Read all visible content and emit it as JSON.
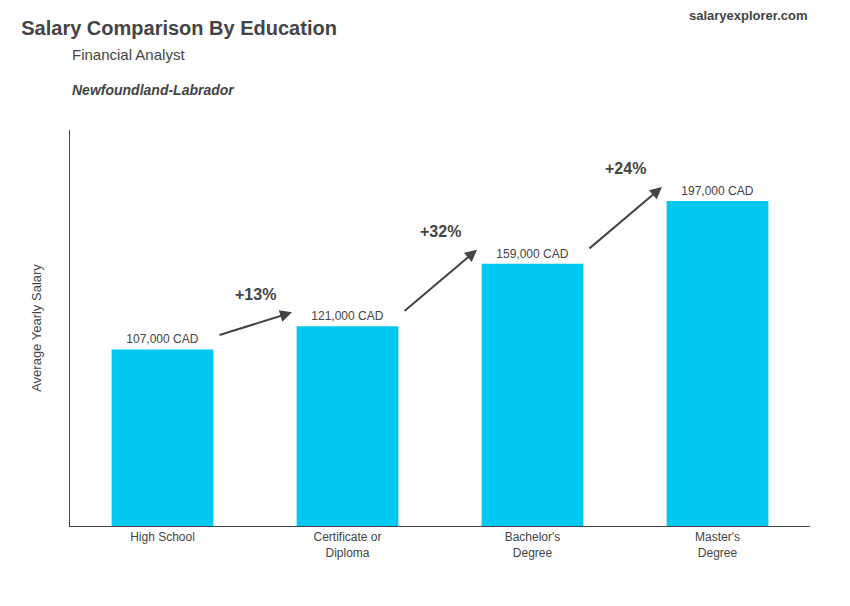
{
  "chart_data": {
    "type": "bar",
    "title": "Salary Comparison By Education",
    "subtitle": [
      "Financial Analyst",
      "Newfoundland-Labrador"
    ],
    "ylabel": "Average Yearly Salary",
    "categories": [
      "High School",
      "Certificate or\nDiploma",
      "Bachelor's\nDegree",
      "Master's\nDegree"
    ],
    "values": [
      107000,
      121000,
      159000,
      197000
    ],
    "value_labels": [
      "107,000 CAD",
      "121,000 CAD",
      "159,000 CAD",
      "197,000 CAD"
    ],
    "data_labels": true,
    "color": "#00c8f0",
    "ylim": [
      0,
      240000
    ],
    "grid": false,
    "tick_labels": "x",
    "annotations": [
      {
        "text": "+13%",
        "from": "High School",
        "to": "Certificate or\nDiploma"
      },
      {
        "text": "+32%",
        "from": "Certificate or\nDiploma",
        "to": "Bachelor's\nDegree"
      },
      {
        "text": "+24%",
        "from": "Bachelor's\nDegree",
        "to": "Master's\nDegree"
      },
      {
        "text": "salaryexplorer.com"
      }
    ]
  }
}
